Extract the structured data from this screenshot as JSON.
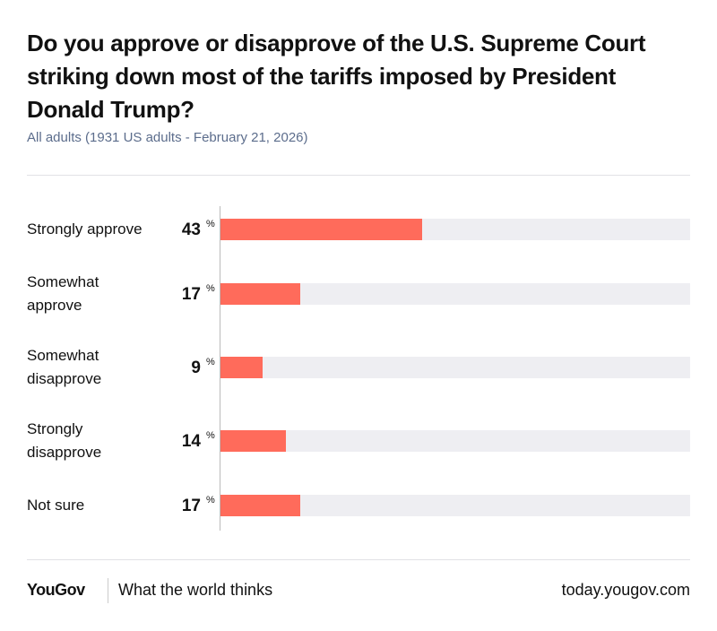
{
  "chart_data": {
    "type": "bar",
    "orientation": "horizontal",
    "title": "Do you approve or disapprove of the U.S. Supreme Court striking down most of the tariffs imposed by President Donald Trump?",
    "subtitle": "All adults (1931 US adults - February 21, 2026)",
    "categories": [
      "Strongly approve",
      "Somewhat approve",
      "Somewhat disapprove",
      "Strongly disapprove",
      "Not sure"
    ],
    "values": [
      43,
      17,
      9,
      14,
      17
    ],
    "unit": "%",
    "color": "#ff6b5b",
    "track_color": "#eeeef2",
    "xlim": [
      0,
      100
    ]
  },
  "footer": {
    "brand": "YouGov",
    "tagline": "What the world thinks",
    "url": "today.yougov.com"
  }
}
